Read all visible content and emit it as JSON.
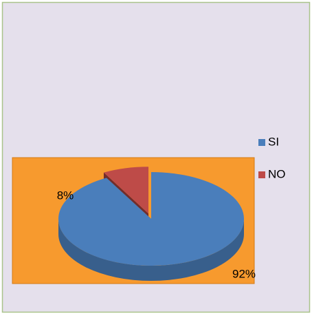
{
  "chart_data": {
    "type": "pie",
    "categories": [
      "SI",
      "NO"
    ],
    "values": [
      92,
      8
    ],
    "value_labels": [
      "92%",
      "8%"
    ],
    "colors": [
      "#4a7ebb",
      "#be4b48"
    ],
    "legend": "right"
  }
}
